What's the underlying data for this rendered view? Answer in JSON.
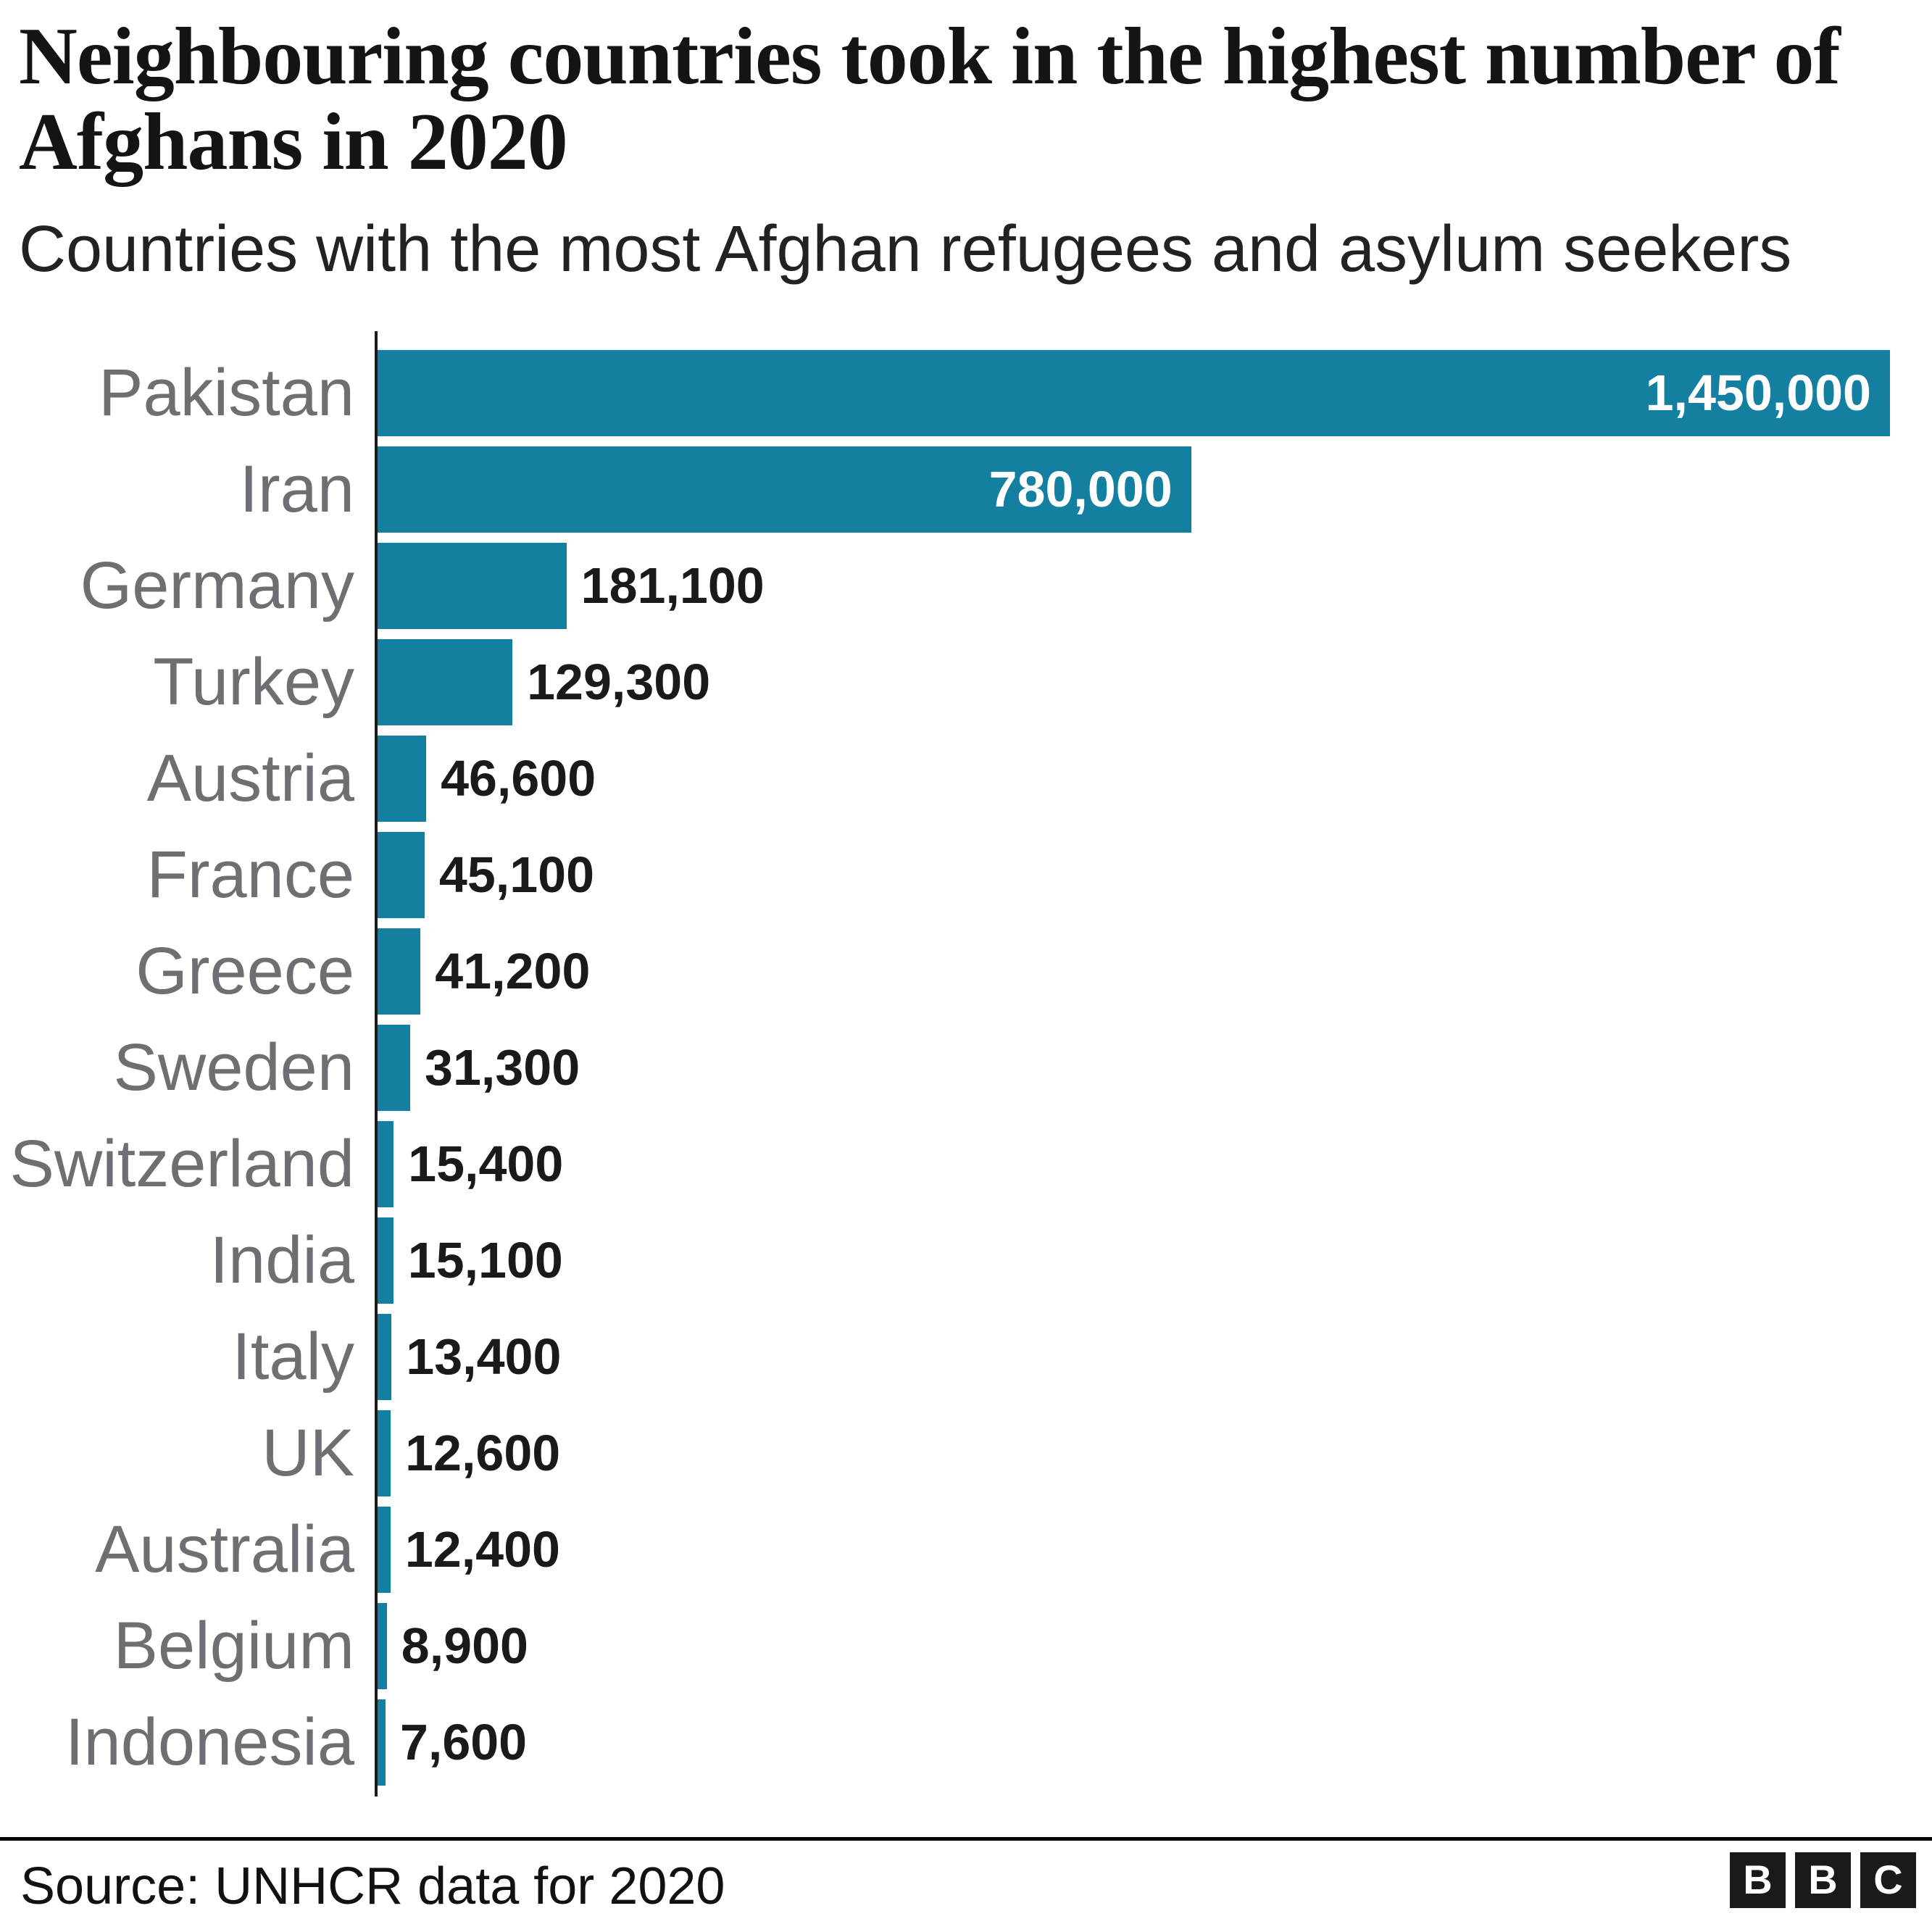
{
  "header": {
    "title": "Neighbouring countries took in the highest number of Afghans in 2020",
    "subtitle": "Countries with the most Afghan refugees and asylum seekers"
  },
  "chart_data": {
    "type": "bar",
    "orientation": "horizontal",
    "title": "Neighbouring countries took in the highest number of Afghans in 2020",
    "subtitle": "Countries with the most Afghan refugees and asylum seekers",
    "categories": [
      "Pakistan",
      "Iran",
      "Germany",
      "Turkey",
      "Austria",
      "France",
      "Greece",
      "Sweden",
      "Switzerland",
      "India",
      "Italy",
      "UK",
      "Australia",
      "Belgium",
      "Indonesia"
    ],
    "values": [
      1450000,
      780000,
      181100,
      129300,
      46600,
      45100,
      41200,
      31300,
      15400,
      15100,
      13400,
      12600,
      12400,
      8900,
      7600
    ],
    "value_labels": [
      "1,450,000",
      "780,000",
      "181,100",
      "129,300",
      "46,600",
      "45,100",
      "41,200",
      "31,300",
      "15,400",
      "15,100",
      "13,400",
      "12,600",
      "12,400",
      "8,900",
      "7,600"
    ],
    "xlim": [
      0,
      1450000
    ],
    "grid": false,
    "legend": false,
    "bar_color": "#1380A1",
    "category_label_color": "#6E6E73",
    "value_label_color_inside": "#FFFFFF",
    "value_label_color_outside": "#1A1A1A"
  },
  "footer": {
    "source": "Source: UNHCR data for 2020",
    "logo_letters": [
      "B",
      "B",
      "C"
    ]
  }
}
